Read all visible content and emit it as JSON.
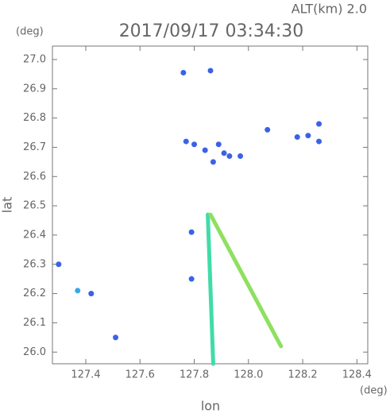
{
  "chart_data": {
    "type": "scatter",
    "title": "2017/09/17 03:34:30",
    "subtitle": "ALT(km) 2.0",
    "x_label": "lon",
    "x_unit": "(deg)",
    "y_label": "lat",
    "y_unit": "(deg)",
    "xlim": [
      127.277,
      128.44
    ],
    "ylim": [
      25.96,
      27.046
    ],
    "xticks": [
      127.4,
      127.6,
      127.8,
      {
        "value": 128,
        "label": "128.0"
      },
      128.2,
      128.4
    ],
    "yticks": [
      {
        "value": 26,
        "label": "26.0"
      },
      26.1,
      26.2,
      26.3,
      26.4,
      26.5,
      26.6,
      26.7,
      26.8,
      26.9,
      {
        "value": 27,
        "label": "27.0"
      }
    ],
    "series": [
      {
        "mode": "markers",
        "color": "#3a62e8",
        "x": [
          127.76,
          127.86,
          128.07,
          128.26,
          128.26,
          128.18,
          128.22,
          127.77,
          127.8,
          127.84,
          127.89,
          127.91,
          127.93,
          127.97,
          127.87,
          127.3,
          127.42,
          127.51,
          127.79,
          127.79
        ],
        "y": [
          26.955,
          26.962,
          26.76,
          26.78,
          26.72,
          26.735,
          26.74,
          26.72,
          26.71,
          26.69,
          26.71,
          26.68,
          26.67,
          26.67,
          26.65,
          26.3,
          26.2,
          26.05,
          26.41,
          26.25
        ]
      },
      {
        "mode": "markers",
        "color": "#3aa8e0",
        "x": [
          127.37
        ],
        "y": [
          26.21
        ]
      },
      {
        "mode": "line",
        "color": "#40dca8",
        "x": [
          127.85,
          127.87
        ],
        "y": [
          26.47,
          25.96
        ]
      },
      {
        "mode": "line",
        "color": "#8ee060",
        "x": [
          127.86,
          128.12
        ],
        "y": [
          26.47,
          26.02
        ]
      }
    ]
  }
}
